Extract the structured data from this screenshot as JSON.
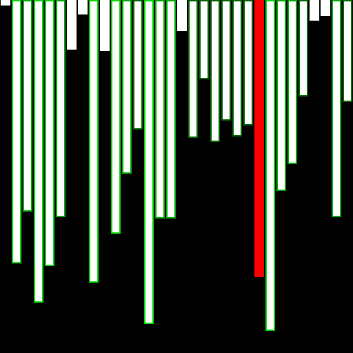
{
  "title": "",
  "colors": {
    "background": "#000000",
    "fill_default": "#ffffff",
    "active": "#ff0000",
    "outline_bright": "#00dd00",
    "outline_mid": "#00aa00",
    "outline_dark": "#006600"
  },
  "bars": [
    {
      "value": 0.016,
      "state": "default"
    },
    {
      "value": 0.747,
      "state": "bright"
    },
    {
      "value": 0.6,
      "state": "mid"
    },
    {
      "value": 0.857,
      "state": "bright"
    },
    {
      "value": 0.753,
      "state": "bright"
    },
    {
      "value": 0.616,
      "state": "mid"
    },
    {
      "value": 0.141,
      "state": "default"
    },
    {
      "value": 0.041,
      "state": "default"
    },
    {
      "value": 0.8,
      "state": "bright"
    },
    {
      "value": 0.145,
      "state": "default"
    },
    {
      "value": 0.663,
      "state": "bright"
    },
    {
      "value": 0.492,
      "state": "mid"
    },
    {
      "value": 0.367,
      "state": "dark"
    },
    {
      "value": 0.918,
      "state": "bright"
    },
    {
      "value": 0.619,
      "state": "mid"
    },
    {
      "value": 0.619,
      "state": "mid"
    },
    {
      "value": 0.088,
      "state": "default"
    },
    {
      "value": 0.391,
      "state": "dark"
    },
    {
      "value": 0.225,
      "state": "dark"
    },
    {
      "value": 0.402,
      "state": "dark"
    },
    {
      "value": 0.342,
      "state": "dark"
    },
    {
      "value": 0.387,
      "state": "dark"
    },
    {
      "value": 0.355,
      "state": "dark"
    },
    {
      "value": 0.785,
      "state": "active"
    },
    {
      "value": 0.937,
      "state": "bright"
    },
    {
      "value": 0.541,
      "state": "mid"
    },
    {
      "value": 0.465,
      "state": "mid"
    },
    {
      "value": 0.273,
      "state": "dark"
    },
    {
      "value": 0.059,
      "state": "default"
    },
    {
      "value": 0.045,
      "state": "default"
    },
    {
      "value": 0.616,
      "state": "mid"
    },
    {
      "value": 0.289,
      "state": "dark"
    }
  ]
}
